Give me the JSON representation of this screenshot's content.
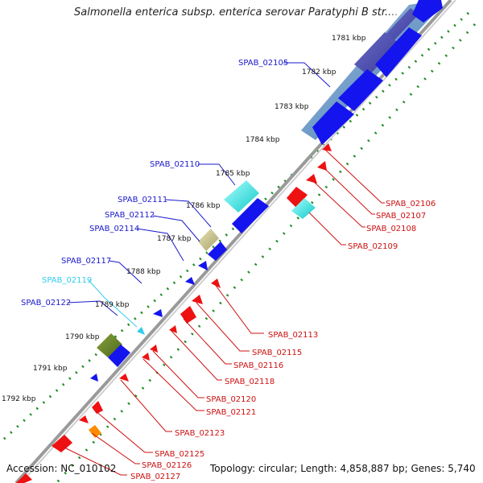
{
  "title": "Salmonella enterica subsp. enterica serovar Paratyphi B str....",
  "footer": {
    "accession": "Accession: NC_010102",
    "topology": "Topology: circular; Length: 4,858,887 bp; Genes: 5,740"
  },
  "colors": {
    "forward_gene": "#1a1aff",
    "reverse_gene": "#ee1111",
    "forward_label": "#1a1acc",
    "reverse_label": "#cc1111",
    "highlight_label": "#33ccee",
    "tick_green": "#228822",
    "backbone": "#888888"
  },
  "scale_ticks": [
    "1781 kbp",
    "1782 kbp",
    "1783 kbp",
    "1784 kbp",
    "1785 kbp",
    "1786 kbp",
    "1787 kbp",
    "1788 kbp",
    "1789 kbp",
    "1790 kbp",
    "1791 kbp",
    "1792 kbp"
  ],
  "forward_labels": [
    {
      "text": "SPAB_02105",
      "color": "forward"
    },
    {
      "text": "SPAB_02110",
      "color": "forward"
    },
    {
      "text": "SPAB_02111",
      "color": "forward"
    },
    {
      "text": "SPAB_02112",
      "color": "forward"
    },
    {
      "text": "SPAB_02114",
      "color": "forward"
    },
    {
      "text": "SPAB_02117",
      "color": "forward"
    },
    {
      "text": "SPAB_02119",
      "color": "highlight"
    },
    {
      "text": "SPAB_02122",
      "color": "forward"
    }
  ],
  "reverse_labels": [
    "SPAB_02106",
    "SPAB_02107",
    "SPAB_02108",
    "SPAB_02109",
    "SPAB_02113",
    "SPAB_02115",
    "SPAB_02116",
    "SPAB_02118",
    "SPAB_02120",
    "SPAB_02121",
    "SPAB_02123",
    "SPAB_02125",
    "SPAB_02126",
    "SPAB_02127"
  ]
}
